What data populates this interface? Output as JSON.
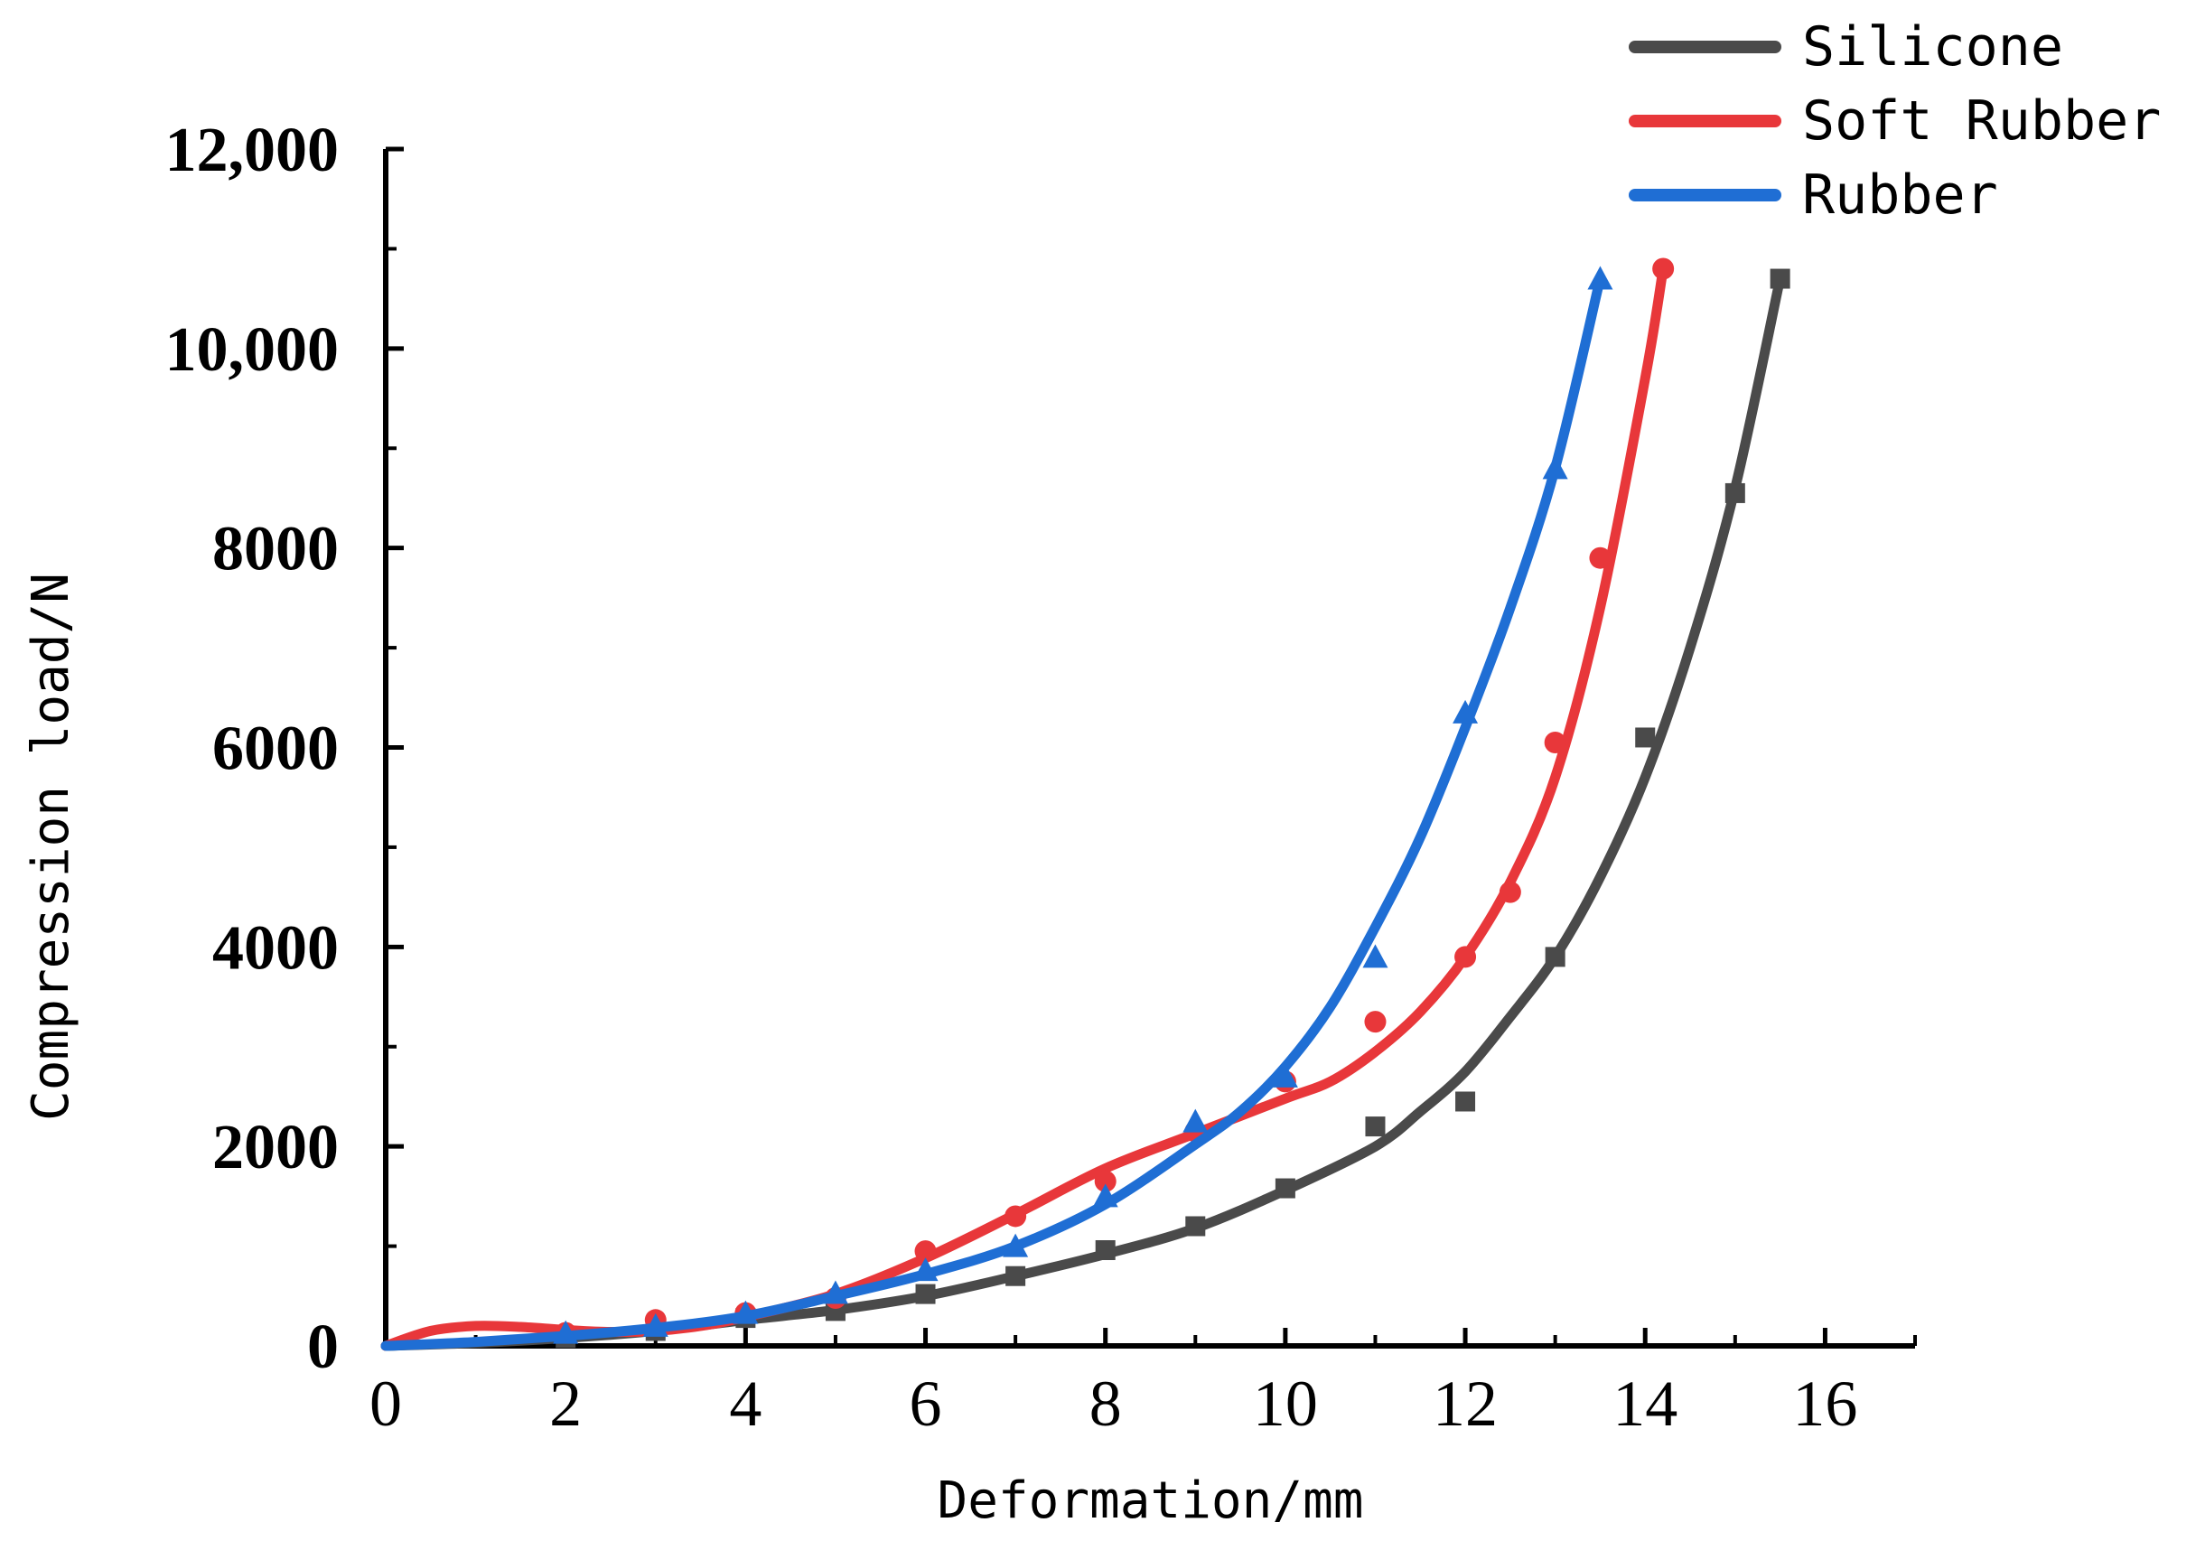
{
  "chart_data": {
    "type": "line",
    "title": "",
    "xlabel": "Deformation/mm",
    "ylabel": "Compression load/N",
    "xlim": [
      0,
      17
    ],
    "ylim": [
      0,
      12000
    ],
    "x_ticks": [
      0,
      2,
      4,
      6,
      8,
      10,
      12,
      14,
      16
    ],
    "x_tick_labels": [
      "0",
      "2",
      "4",
      "6",
      "8",
      "10",
      "12",
      "14",
      "16"
    ],
    "y_ticks": [
      0,
      2000,
      4000,
      6000,
      8000,
      10000,
      12000
    ],
    "y_tick_labels": [
      "0",
      "2000",
      "4000",
      "6000",
      "8000",
      "10,000",
      "12,000"
    ],
    "grid": false,
    "legend_position": "top-right",
    "series": [
      {
        "name": "Silicone",
        "color": "#4a4a4a",
        "marker": "square",
        "points": [
          [
            2,
            80
          ],
          [
            3,
            150
          ],
          [
            4,
            280
          ],
          [
            5,
            350
          ],
          [
            6,
            520
          ],
          [
            7,
            700
          ],
          [
            8,
            960
          ],
          [
            9,
            1200
          ],
          [
            10,
            1580
          ],
          [
            11,
            2200
          ],
          [
            12,
            2450
          ],
          [
            13,
            3900
          ],
          [
            14,
            6100
          ],
          [
            15,
            8550
          ],
          [
            15.5,
            10700
          ]
        ],
        "fit": [
          [
            0,
            0
          ],
          [
            1,
            30
          ],
          [
            2,
            80
          ],
          [
            3,
            150
          ],
          [
            4,
            260
          ],
          [
            5,
            360
          ],
          [
            6,
            500
          ],
          [
            7,
            700
          ],
          [
            8,
            920
          ],
          [
            9,
            1180
          ],
          [
            10,
            1560
          ],
          [
            11,
            2000
          ],
          [
            11.5,
            2350
          ],
          [
            12,
            2750
          ],
          [
            12.5,
            3300
          ],
          [
            13,
            3900
          ],
          [
            13.5,
            4700
          ],
          [
            14,
            5700
          ],
          [
            14.5,
            7000
          ],
          [
            15,
            8600
          ],
          [
            15.5,
            10700
          ]
        ]
      },
      {
        "name": "Soft Rubber",
        "color": "#e8373a",
        "marker": "circle",
        "points": [
          [
            2,
            130
          ],
          [
            3,
            260
          ],
          [
            4,
            330
          ],
          [
            5,
            480
          ],
          [
            6,
            950
          ],
          [
            7,
            1300
          ],
          [
            8,
            1650
          ],
          [
            9,
            2150
          ],
          [
            10,
            2650
          ],
          [
            11,
            3250
          ],
          [
            12,
            3900
          ],
          [
            12.5,
            4550
          ],
          [
            13,
            6050
          ],
          [
            13.5,
            7900
          ],
          [
            14.2,
            10800
          ]
        ],
        "fit": [
          [
            0,
            0
          ],
          [
            0.5,
            150
          ],
          [
            1,
            200
          ],
          [
            1.5,
            190
          ],
          [
            2,
            160
          ],
          [
            2.5,
            140
          ],
          [
            3,
            150
          ],
          [
            3.5,
            200
          ],
          [
            4,
            290
          ],
          [
            5,
            520
          ],
          [
            6,
            880
          ],
          [
            7,
            1320
          ],
          [
            8,
            1780
          ],
          [
            9,
            2130
          ],
          [
            10,
            2480
          ],
          [
            10.5,
            2650
          ],
          [
            11,
            2950
          ],
          [
            11.5,
            3350
          ],
          [
            12,
            3900
          ],
          [
            12.5,
            4650
          ],
          [
            13,
            5700
          ],
          [
            13.5,
            7400
          ],
          [
            14,
            9700
          ],
          [
            14.2,
            10800
          ]
        ]
      },
      {
        "name": "Rubber",
        "color": "#1f6ed4",
        "marker": "triangle",
        "points": [
          [
            2,
            130
          ],
          [
            3,
            200
          ],
          [
            4,
            330
          ],
          [
            5,
            530
          ],
          [
            6,
            760
          ],
          [
            7,
            1000
          ],
          [
            8,
            1500
          ],
          [
            9,
            2250
          ],
          [
            10,
            2700
          ],
          [
            11,
            3900
          ],
          [
            12,
            6350
          ],
          [
            13,
            8800
          ],
          [
            13.5,
            10700
          ]
        ],
        "fit": [
          [
            0,
            0
          ],
          [
            1,
            40
          ],
          [
            2,
            100
          ],
          [
            3,
            180
          ],
          [
            4,
            300
          ],
          [
            5,
            500
          ],
          [
            6,
            720
          ],
          [
            7,
            1000
          ],
          [
            8,
            1420
          ],
          [
            9,
            2020
          ],
          [
            9.5,
            2350
          ],
          [
            10,
            2800
          ],
          [
            10.5,
            3400
          ],
          [
            11,
            4200
          ],
          [
            11.5,
            5100
          ],
          [
            12,
            6200
          ],
          [
            12.5,
            7400
          ],
          [
            13,
            8800
          ],
          [
            13.5,
            10700
          ]
        ]
      }
    ]
  }
}
